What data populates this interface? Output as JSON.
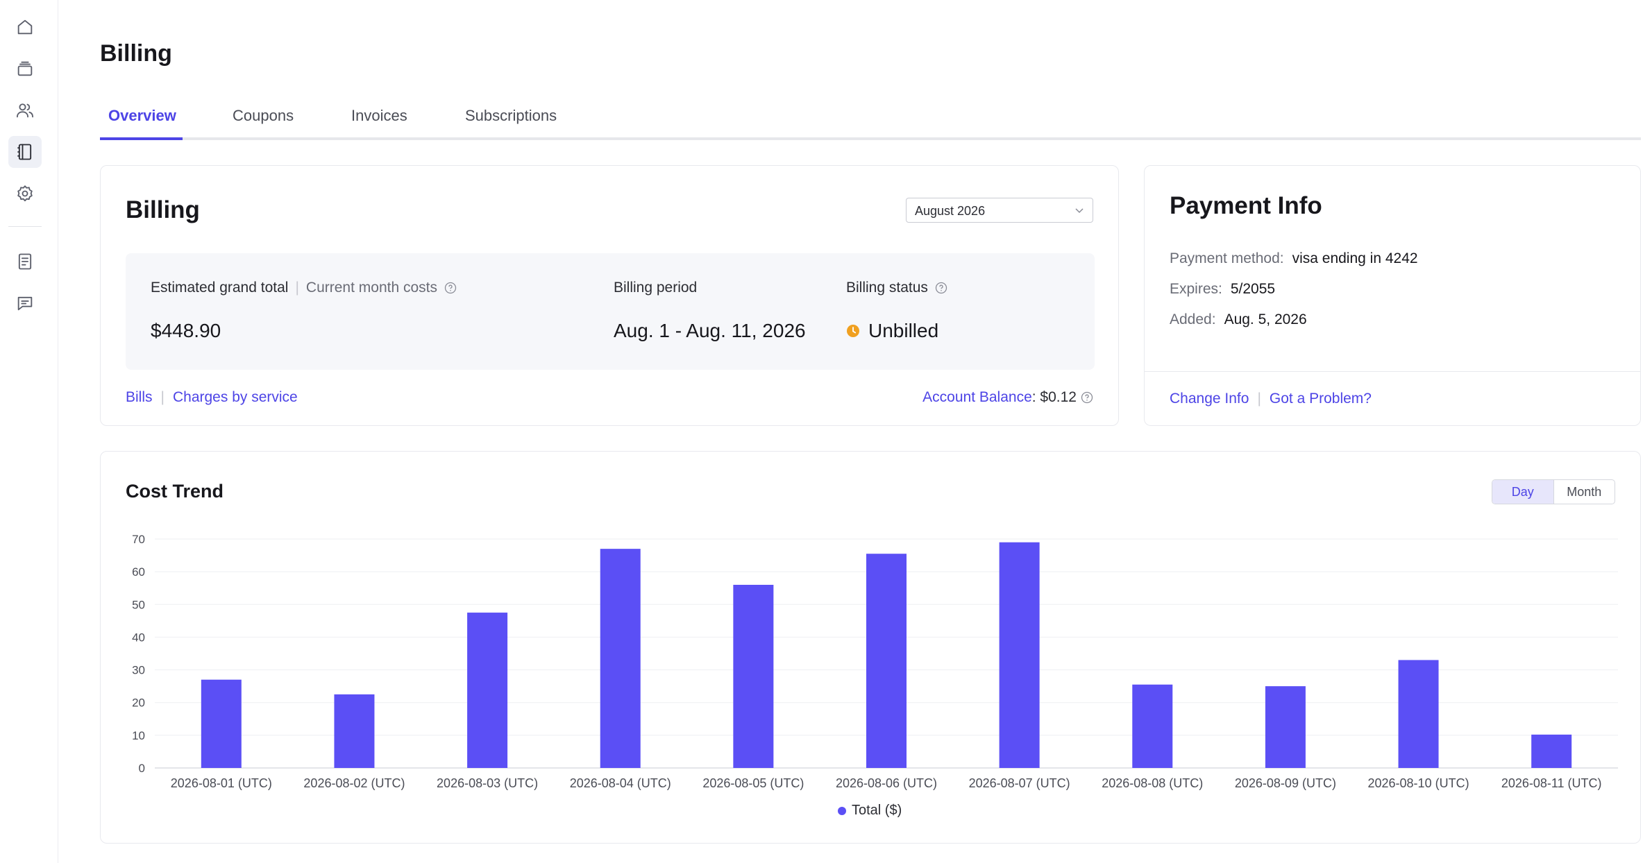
{
  "sidebar": {
    "items": [
      {
        "icon": "home-icon"
      },
      {
        "icon": "layers-icon"
      },
      {
        "icon": "users-icon"
      },
      {
        "icon": "notebook-icon",
        "active": true
      },
      {
        "icon": "gear-icon"
      },
      {
        "icon": "document-icon"
      },
      {
        "icon": "chat-icon"
      }
    ]
  },
  "page": {
    "title": "Billing"
  },
  "tabs": [
    {
      "label": "Overview",
      "active": true
    },
    {
      "label": "Coupons"
    },
    {
      "label": "Invoices"
    },
    {
      "label": "Subscriptions"
    }
  ],
  "billing": {
    "title": "Billing",
    "month_select": "August 2026",
    "estimated_label": "Estimated grand total",
    "current_month_label": "Current month costs",
    "estimated_value": "$448.90",
    "period_label": "Billing period",
    "period_value": "Aug. 1 - Aug. 11, 2026",
    "status_label": "Billing status",
    "status_value": "Unbilled",
    "status_color": "#f0a020",
    "links": {
      "bills": "Bills",
      "charges": "Charges by service"
    },
    "balance_label": "Account Balance",
    "balance_value": ": $0.12"
  },
  "payment": {
    "title": "Payment Info",
    "method_label": "Payment method:",
    "method_value": "visa ending in 4242",
    "expires_label": "Expires:",
    "expires_value": "5/2055",
    "added_label": "Added:",
    "added_value": "Aug. 5, 2026",
    "links": {
      "change": "Change Info",
      "problem": "Got a Problem?"
    }
  },
  "trend": {
    "title": "Cost Trend",
    "toggle": {
      "day": "Day",
      "month": "Month",
      "active": "day"
    }
  },
  "chart_data": {
    "type": "bar",
    "categories": [
      "2026-08-01 (UTC)",
      "2026-08-02 (UTC)",
      "2026-08-03 (UTC)",
      "2026-08-04 (UTC)",
      "2026-08-05 (UTC)",
      "2026-08-06 (UTC)",
      "2026-08-07 (UTC)",
      "2026-08-08 (UTC)",
      "2026-08-09 (UTC)",
      "2026-08-10 (UTC)",
      "2026-08-11 (UTC)"
    ],
    "series": [
      {
        "name": "Total ($)",
        "values": [
          27,
          22.5,
          47.5,
          67,
          56,
          65.5,
          69,
          25.5,
          25,
          33,
          10.2
        ],
        "color": "#5b4ff5"
      }
    ],
    "yticks": [
      0,
      10,
      20,
      30,
      40,
      50,
      60,
      70
    ],
    "ylim": [
      0,
      70
    ],
    "grid": true,
    "legend": "bottom-center"
  }
}
